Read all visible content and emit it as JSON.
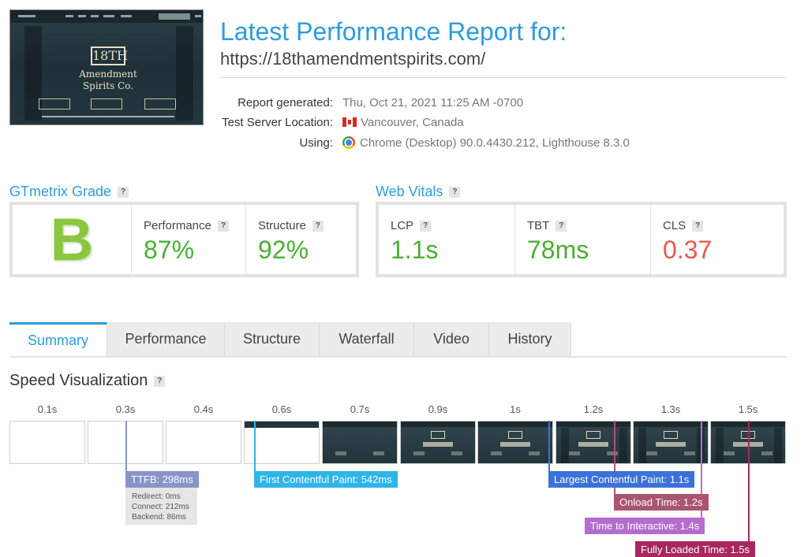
{
  "report": {
    "title": "Latest Performance Report for:",
    "url": "https://18thamendmentspirits.com/",
    "meta": [
      {
        "label": "Report generated:",
        "value": "Thu, Oct 21, 2021 11:25 AM -0700",
        "icon": ""
      },
      {
        "label": "Test Server Location:",
        "value": "Vancouver, Canada",
        "icon": "canada-flag-icon"
      },
      {
        "label": "Using:",
        "value": "Chrome (Desktop) 90.0.4430.212, Lighthouse 8.3.0",
        "icon": "chrome-icon"
      }
    ]
  },
  "thumbnail": {
    "logo_number": "18TH",
    "logo_line1": "Amendment",
    "logo_line2": "Spirits Co."
  },
  "grade": {
    "title": "GTmetrix Grade",
    "letter": "B",
    "letter_color": "#8cc63f",
    "performance_label": "Performance",
    "performance_value": "87%",
    "structure_label": "Structure",
    "structure_value": "92%",
    "good_color": "#4aaf32"
  },
  "vitals": {
    "title": "Web Vitals",
    "lcp_label": "LCP",
    "lcp_value": "1.1s",
    "tbt_label": "TBT",
    "tbt_value": "78ms",
    "cls_label": "CLS",
    "cls_value": "0.37",
    "bad_color": "#e8574d"
  },
  "help_glyph": "?",
  "tabs": [
    "Summary",
    "Performance",
    "Structure",
    "Waterfall",
    "Video",
    "History"
  ],
  "speed": {
    "title": "Speed Visualization",
    "frame_times": [
      "0.1s",
      "0.3s",
      "0.4s",
      "0.6s",
      "0.7s",
      "0.9s",
      "1s",
      "1.2s",
      "1.3s",
      "1.5s"
    ],
    "ttfb": {
      "label": "TTFB: 298ms",
      "redirect": "Redirect: 0ms",
      "connect": "Connect: 212ms",
      "backend": "Backend: 86ms",
      "color": "#8795c8"
    },
    "fcp": {
      "label": "First Contentful Paint: 542ms",
      "color": "#2fb5e8"
    },
    "lcp": {
      "label": "Largest Contentful Paint: 1.1s",
      "color": "#3a72d8"
    },
    "onload": {
      "label": "Onload Time: 1.2s",
      "color": "#a9556e"
    },
    "tti": {
      "label": "Time to Interactive: 1.4s",
      "color": "#b46ccf"
    },
    "fully_loaded": {
      "label": "Fully Loaded Time: 1.5s",
      "color": "#a8285e"
    }
  }
}
